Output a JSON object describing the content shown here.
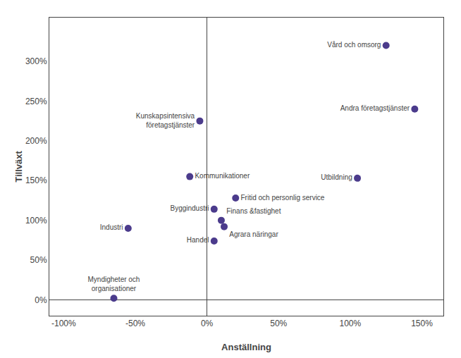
{
  "chart_data": {
    "type": "scatter",
    "xlabel": "Anställning",
    "ylabel": "Tillväxt",
    "labels": [
      "Vård och omsorg",
      "Andra företagstjänster",
      "Kunskapsintensiva\nföretagstjänster",
      "Kommunikationer",
      "Utbildning",
      "Fritid och personlig service",
      "Byggindustri",
      "Finans &fastighet",
      "Agrara näringar",
      "Industri",
      "Handel",
      "Myndigheter och\norganisationer"
    ],
    "x": [
      125,
      145,
      -5,
      -12,
      105,
      20,
      5,
      10,
      12,
      -55,
      5,
      -65
    ],
    "values": [
      320,
      240,
      225,
      155,
      153,
      128,
      114,
      100,
      92,
      90,
      74,
      2
    ],
    "color": "#4B3B8C",
    "xlim": [
      -110,
      165
    ],
    "ylim": [
      -20,
      355
    ],
    "xticks": [
      {
        "value": -100,
        "label": "-100%"
      },
      {
        "value": -50,
        "label": "-50%"
      },
      {
        "value": 0,
        "label": "0%"
      },
      {
        "value": 50,
        "label": "50%"
      },
      {
        "value": 100,
        "label": "100%"
      },
      {
        "value": 150,
        "label": "150%"
      }
    ],
    "yticks": [
      {
        "value": 0,
        "label": "0%"
      },
      {
        "value": 50,
        "label": "50%"
      },
      {
        "value": 100,
        "label": "100%"
      },
      {
        "value": 150,
        "label": "150%"
      },
      {
        "value": 200,
        "label": "200%"
      },
      {
        "value": 250,
        "label": "250%"
      },
      {
        "value": 300,
        "label": "300%"
      }
    ],
    "grid": false
  }
}
